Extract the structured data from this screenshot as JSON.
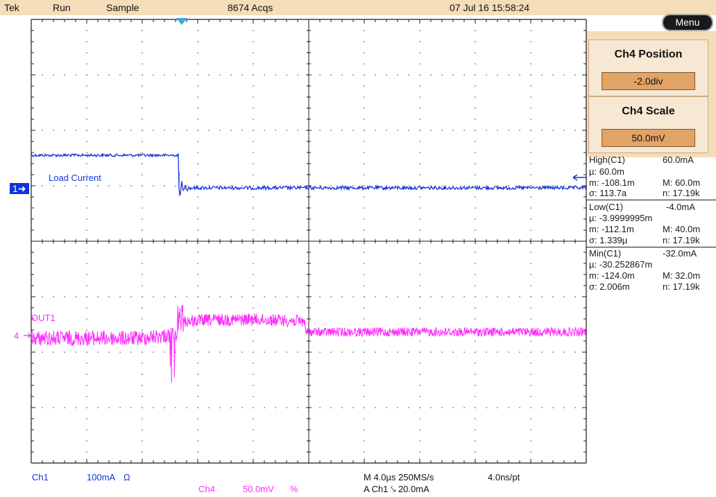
{
  "header": {
    "brand": "Tek",
    "run_state": "Run",
    "acq_mode": "Sample",
    "acquisitions": "8674 Acqs",
    "datetime": "07 Jul 16 15:58:24"
  },
  "menu_label": "Menu",
  "controls": {
    "position": {
      "title": "Ch4 Position",
      "value": "-2.0div"
    },
    "scale": {
      "title": "Ch4 Scale",
      "value": "50.0mV"
    }
  },
  "measurements": [
    {
      "name": "High(C1)",
      "value": "60.0mA",
      "mu": "µ: 60.0m",
      "m": "m: -108.1m",
      "M": "M: 60.0m",
      "sigma": "σ: 113.7a",
      "n": "n: 17.19k"
    },
    {
      "name": "Low(C1)",
      "value": "-4.0mA",
      "mu": "µ: -3.9999995m",
      "m": "m: -112.1m",
      "M": "M: 40.0m",
      "sigma": "σ: 1.339µ",
      "n": "n: 17.19k"
    },
    {
      "name": "Min(C1)",
      "value": "-32.0mA",
      "mu": "µ: -30.252867m",
      "m": "m: -124.0m",
      "M": "M: 32.0m",
      "sigma": "σ: 2.006m",
      "n": "n: 17.19k"
    }
  ],
  "traces": {
    "ch1": {
      "marker": "1",
      "label": "Load Current",
      "color": "#1233d9"
    },
    "ch4": {
      "marker": "4",
      "label": "OUT1",
      "color": "#ff2bff"
    }
  },
  "bottom": {
    "ch1_label": "Ch1",
    "ch1_scale": "100mA",
    "ch1_coupling": "Ω",
    "ch4_label": "Ch4",
    "ch4_scale": "50.0mV",
    "ch4_coupling": "%",
    "timebase": "M 4.0µs 250MS/s",
    "resolution": "4.0ns/pt",
    "trigger": "A  Ch1  ⤥  20.0mA"
  },
  "colors": {
    "grid": "#1a1a1a",
    "panel": "#f5ddb9",
    "control_value": "#e1a366",
    "trigger_marker": "#39a9e0"
  }
}
